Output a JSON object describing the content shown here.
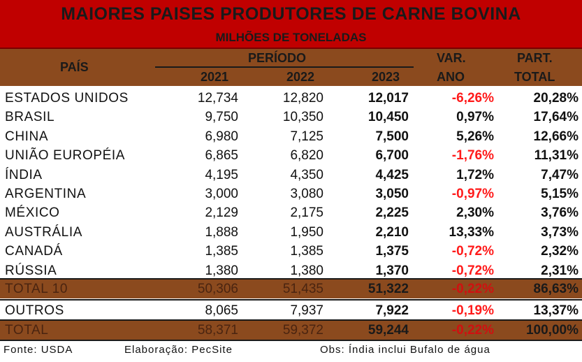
{
  "title": "MAIORES PAISES PRODUTORES DE CARNE BOVINA",
  "subtitle": "MILHÕES DE TONELADAS",
  "headers": {
    "country": "PAÍS",
    "period": "PERÍODO",
    "y2021": "2021",
    "y2022": "2022",
    "y2023": "2023",
    "var_top": "VAR.",
    "var_bottom": "ANO",
    "part_top": "PART.",
    "part_bottom": "TOTAL"
  },
  "chart_data": {
    "type": "table",
    "columns": [
      "PAÍS",
      "2021",
      "2022",
      "2023",
      "VAR. ANO",
      "PART. TOTAL"
    ],
    "rows": [
      {
        "country": "ESTADOS UNIDOS",
        "y2021": "12,734",
        "y2022": "12,820",
        "y2023": "12,017",
        "var": "-6,26%",
        "part": "20,28%"
      },
      {
        "country": "BRASIL",
        "y2021": "9,750",
        "y2022": "10,350",
        "y2023": "10,450",
        "var": "0,97%",
        "part": "17,64%"
      },
      {
        "country": "CHINA",
        "y2021": "6,980",
        "y2022": "7,125",
        "y2023": "7,500",
        "var": "5,26%",
        "part": "12,66%"
      },
      {
        "country": "UNIÃO EUROPÉIA",
        "y2021": "6,865",
        "y2022": "6,820",
        "y2023": "6,700",
        "var": "-1,76%",
        "part": "11,31%"
      },
      {
        "country": "ÍNDIA",
        "y2021": "4,195",
        "y2022": "4,350",
        "y2023": "4,425",
        "var": "1,72%",
        "part": "7,47%"
      },
      {
        "country": "ARGENTINA",
        "y2021": "3,000",
        "y2022": "3,080",
        "y2023": "3,050",
        "var": "-0,97%",
        "part": "5,15%"
      },
      {
        "country": "MÉXICO",
        "y2021": "2,129",
        "y2022": "2,175",
        "y2023": "2,225",
        "var": "2,30%",
        "part": "3,76%"
      },
      {
        "country": "AUSTRÁLIA",
        "y2021": "1,888",
        "y2022": "1,950",
        "y2023": "2,210",
        "var": "13,33%",
        "part": "3,73%"
      },
      {
        "country": "CANADÁ",
        "y2021": "1,385",
        "y2022": "1,385",
        "y2023": "1,375",
        "var": "-0,72%",
        "part": "2,32%"
      },
      {
        "country": "RÚSSIA",
        "y2021": "1,380",
        "y2022": "1,380",
        "y2023": "1,370",
        "var": "-0,72%",
        "part": "2,31%"
      }
    ],
    "total10": {
      "country": "TOTAL 10",
      "y2021": "50,306",
      "y2022": "51,435",
      "y2023": "51,322",
      "var": "-0,22%",
      "part": "86,63%"
    },
    "others": {
      "country": "OUTROS",
      "y2021": "8,065",
      "y2022": "7,937",
      "y2023": "7,922",
      "var": "-0,19%",
      "part": "13,37%"
    },
    "total": {
      "country": "TOTAL",
      "y2021": "58,371",
      "y2022": "59,372",
      "y2023": "59,244",
      "var": "-0,22%",
      "part": "100,00%"
    }
  },
  "footer": {
    "source": "Fonte: USDA",
    "elaboration": "Elaboração: PecSite",
    "note": "Obs: Índia inclui Bufalo de água"
  },
  "colors": {
    "title_bg": "#c00000",
    "header_bg": "#8b4a1e",
    "negative": "#ff1a1a"
  }
}
